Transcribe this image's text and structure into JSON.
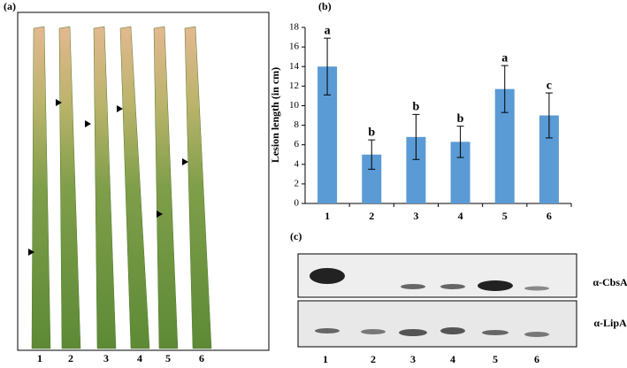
{
  "panels": {
    "a": {
      "label": "(a)",
      "lanes": [
        "1",
        "2",
        "3",
        "4",
        "5",
        "6"
      ]
    },
    "c": {
      "label": "(c)",
      "blots": [
        "α-CbsA",
        "α-LipA"
      ],
      "lanes": [
        "1",
        "2",
        "3",
        "4",
        "5",
        "6"
      ]
    }
  },
  "chart_data": {
    "type": "bar",
    "label": "(b)",
    "ylabel": "Lesion length (in cm)",
    "categories": [
      "1",
      "2",
      "3",
      "4",
      "5",
      "6"
    ],
    "values": [
      14,
      5,
      6.8,
      6.3,
      11.7,
      9
    ],
    "errors": [
      2.9,
      1.5,
      2.3,
      1.6,
      2.4,
      2.3
    ],
    "significance": [
      "a",
      "b",
      "b",
      "b",
      "a",
      "c"
    ],
    "color": "#5b9bd5",
    "ylim": [
      0,
      18
    ],
    "yticks": [
      0,
      2,
      4,
      6,
      8,
      10,
      12,
      14,
      16,
      18
    ]
  }
}
